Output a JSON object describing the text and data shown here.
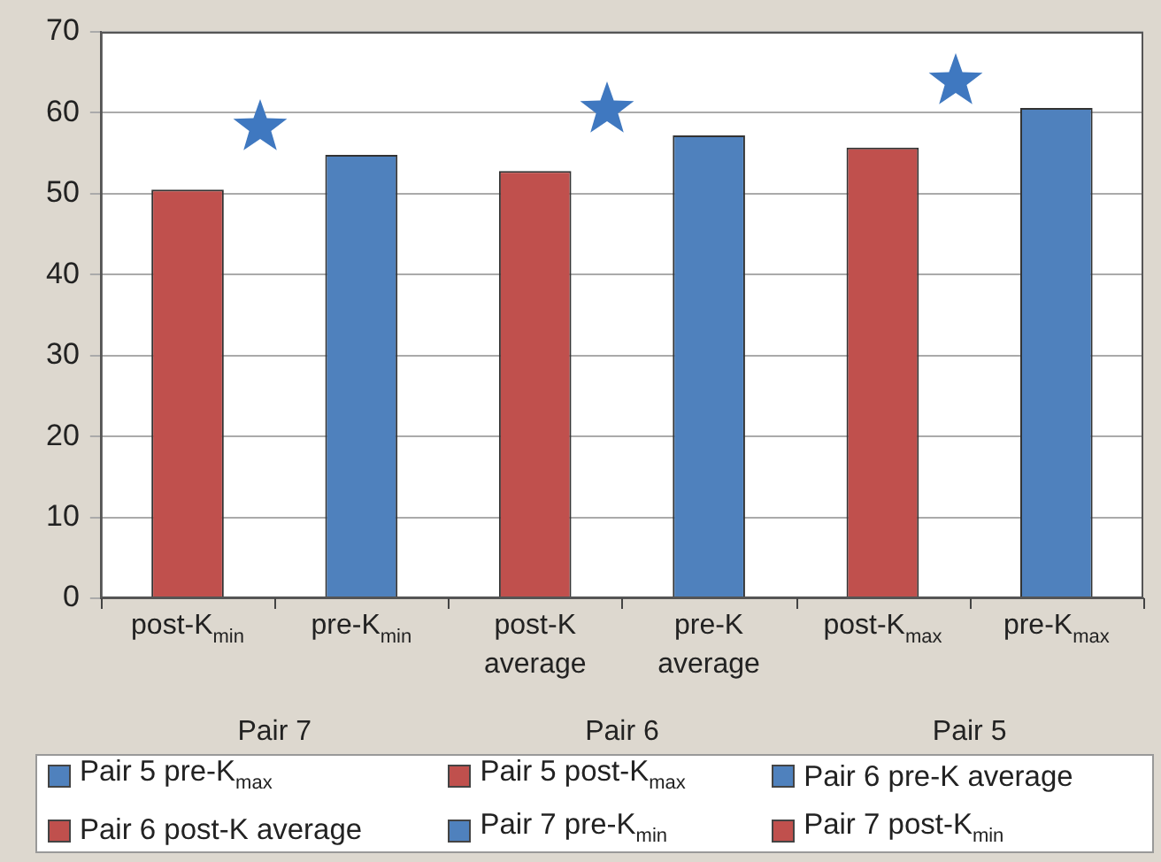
{
  "chart_data": {
    "type": "bar",
    "categories": [
      "post-K$_{min}$",
      "pre-K$_{min}$",
      "post-K average",
      "pre-K average",
      "post-K$_{max}$",
      "pre-K$_{max}$"
    ],
    "series": [
      {
        "name": "Pair 5 pre-K$_{max}$",
        "color": "#4f81bd",
        "values": [
          null,
          null,
          null,
          null,
          null,
          60.6
        ]
      },
      {
        "name": "Pair 5 post-K$_{max}$",
        "color": "#c0504d",
        "values": [
          null,
          null,
          null,
          null,
          55.7,
          null
        ]
      },
      {
        "name": "Pair 6 pre-K average",
        "color": "#4f81bd",
        "values": [
          null,
          null,
          null,
          57.2,
          null,
          null
        ]
      },
      {
        "name": "Pair 6 post-K average",
        "color": "#c0504d",
        "values": [
          null,
          null,
          52.8,
          null,
          null,
          null
        ]
      },
      {
        "name": "Pair 7 pre-K$_{min}$",
        "color": "#4f81bd",
        "values": [
          null,
          54.8,
          null,
          null,
          null,
          null
        ]
      },
      {
        "name": "Pair 7 post-K$_{min}$",
        "color": "#c0504d",
        "values": [
          50.5,
          null,
          null,
          null,
          null,
          null
        ]
      }
    ],
    "annotations": [
      "Pair 7",
      "Pair 6",
      "Pair 5"
    ],
    "ylim": [
      0,
      70
    ],
    "yticks": [
      0,
      10,
      20,
      30,
      40,
      50,
      60,
      70
    ],
    "grid": "y",
    "legend": "bottom"
  }
}
